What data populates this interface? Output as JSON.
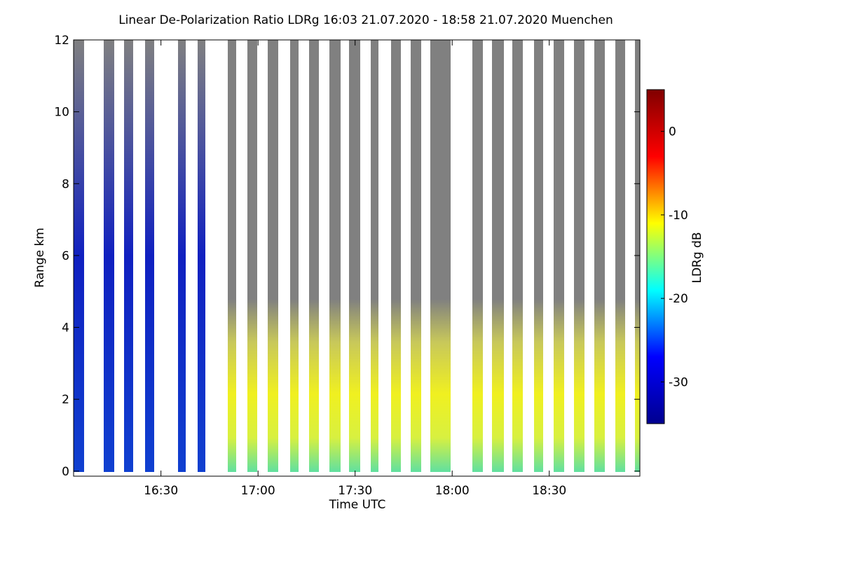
{
  "chart_data": {
    "type": "heatmap",
    "title": "Linear De-Polarization Ratio LDRg   16:03 21.07.2020 - 18:58 21.07.2020 Muenchen",
    "xlabel": "Time UTC",
    "ylabel": "Range km",
    "xlim": [
      963,
      1138
    ],
    "xticks": [
      {
        "value": 990,
        "label": "16:30"
      },
      {
        "value": 1020,
        "label": "17:00"
      },
      {
        "value": 1050,
        "label": "17:30"
      },
      {
        "value": 1080,
        "label": "18:00"
      },
      {
        "value": 1110,
        "label": "18:30"
      }
    ],
    "ylim": [
      -0.14,
      12
    ],
    "yticks": [
      0,
      2,
      4,
      6,
      8,
      10,
      12
    ],
    "colorbar": {
      "label": "LDRg dB",
      "lim": [
        -35,
        5
      ],
      "ticks": [
        0,
        -10,
        -20,
        -30
      ],
      "colormap": "jet"
    }
  }
}
